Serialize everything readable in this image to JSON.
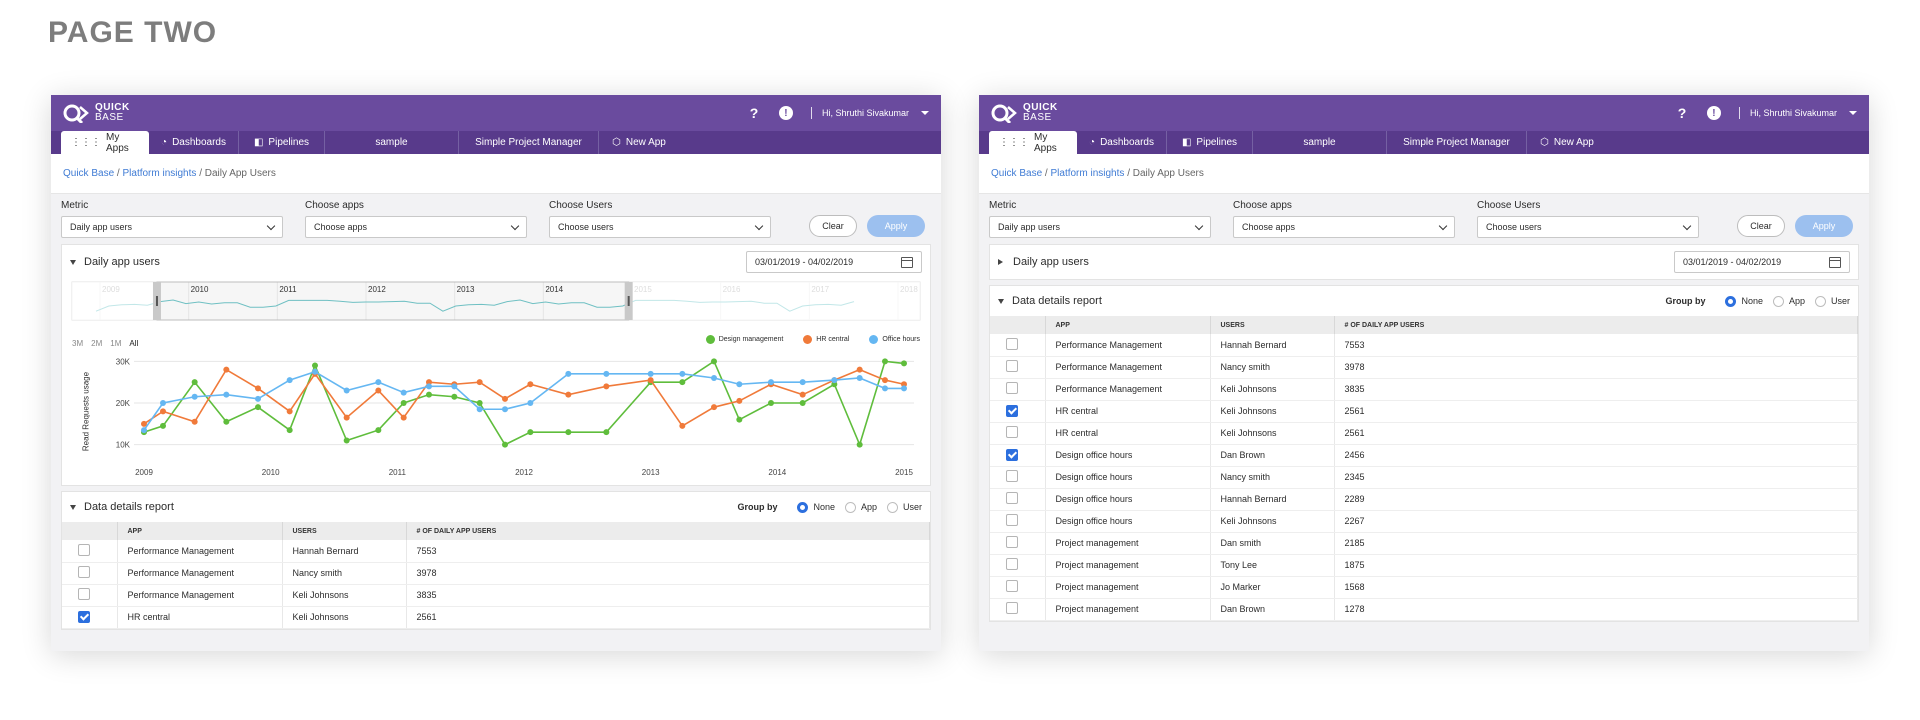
{
  "page_title": "PAGE TWO",
  "app": {
    "logo_line1": "QUICK",
    "logo_line2": "BASE",
    "help_icon": "?",
    "alert_icon": "!",
    "user_greeting": "Hi, Shruthi Sivakumar",
    "nav": [
      "My Apps",
      "Dashboards",
      "Pipelines",
      "sample",
      "Simple Project Manager",
      "New App"
    ],
    "breadcrumb": {
      "home": "Quick Base",
      "sep": "/",
      "section": "Platform insights",
      "current": "Daily App Users"
    },
    "filters": {
      "metric_label": "Metric",
      "metric_value": "Daily app users",
      "apps_label": "Choose apps",
      "apps_value": "Choose apps",
      "users_label": "Choose Users",
      "users_value": "Choose users",
      "clear": "Clear",
      "apply": "Apply"
    },
    "daily_card_title": "Daily app users",
    "date_range": "03/01/2019 - 04/02/2019",
    "report_title": "Data details report",
    "group_by_label": "Group by",
    "group_options": [
      "None",
      "App",
      "User"
    ],
    "columns": [
      "APP",
      "USERS",
      "# OF DAILY APP USERS"
    ],
    "zoom_options": [
      "3M",
      "2M",
      "1M",
      "All"
    ],
    "colors": {
      "accent": "#2c6fde",
      "topbar": "#6a4b9e",
      "nav": "#583a8b"
    }
  },
  "rows_left": [
    {
      "app": "Performance Management",
      "user": "Hannah Bernard",
      "count": "7553",
      "checked": false
    },
    {
      "app": "Performance Management",
      "user": "Nancy smith",
      "count": "3978",
      "checked": false
    },
    {
      "app": "Performance Management",
      "user": "Keli Johnsons",
      "count": "3835",
      "checked": false
    },
    {
      "app": "HR central",
      "user": "Keli Johnsons",
      "count": "2561",
      "checked": true
    }
  ],
  "rows_right": [
    {
      "app": "Performance Management",
      "user": "Hannah Bernard",
      "count": "7553",
      "checked": false
    },
    {
      "app": "Performance Management",
      "user": "Nancy smith",
      "count": "3978",
      "checked": false
    },
    {
      "app": "Performance Management",
      "user": "Keli Johnsons",
      "count": "3835",
      "checked": false
    },
    {
      "app": "HR central",
      "user": "Keli Johnsons",
      "count": "2561",
      "checked": true
    },
    {
      "app": "HR central",
      "user": "Keli Johnsons",
      "count": "2561",
      "checked": false
    },
    {
      "app": "Design office hours",
      "user": "Dan Brown",
      "count": "2456",
      "checked": true
    },
    {
      "app": "Design office hours",
      "user": "Nancy smith",
      "count": "2345",
      "checked": false
    },
    {
      "app": "Design office hours",
      "user": "Hannah Bernard",
      "count": "2289",
      "checked": false
    },
    {
      "app": "Design office hours",
      "user": "Keli Johnsons",
      "count": "2267",
      "checked": false
    },
    {
      "app": "Project management",
      "user": "Dan smith",
      "count": "2185",
      "checked": false
    },
    {
      "app": "Project management",
      "user": "Tony Lee",
      "count": "1875",
      "checked": false
    },
    {
      "app": "Project management",
      "user": "Jo Marker",
      "count": "1568",
      "checked": false
    },
    {
      "app": "Project management",
      "user": "Dan Brown",
      "count": "1278",
      "checked": false
    }
  ],
  "chart_data": {
    "type": "line",
    "ylabel": "Read Requests usage",
    "ylim": [
      8000,
      32000
    ],
    "yticks": [
      "10K",
      "20K",
      "30K"
    ],
    "xlim": [
      2009,
      2015
    ],
    "xticks": [
      "2009",
      "2010",
      "2011",
      "2012",
      "2013",
      "2014",
      "2015"
    ],
    "overview_years": [
      "2009",
      "2010",
      "2011",
      "2012",
      "2013",
      "2014",
      "2015",
      "2016",
      "2017",
      "2018"
    ],
    "legend_position": "top-right",
    "series": [
      {
        "name": "Design management",
        "color": "#5fbd3c",
        "x": [
          2009.0,
          2009.15,
          2009.4,
          2009.65,
          2009.9,
          2010.15,
          2010.35,
          2010.6,
          2010.85,
          2011.05,
          2011.25,
          2011.45,
          2011.65,
          2011.85,
          2012.05,
          2012.35,
          2012.65,
          2013.0,
          2013.25,
          2013.5,
          2013.7,
          2013.95,
          2014.2,
          2014.45,
          2014.65,
          2014.85,
          2015.0
        ],
        "y": [
          13000,
          14500,
          25000,
          15500,
          19000,
          13500,
          29000,
          11000,
          13500,
          20000,
          22000,
          21500,
          20000,
          10000,
          13000,
          13000,
          13000,
          25000,
          25000,
          30000,
          16000,
          20000,
          20000,
          24500,
          10000,
          30000,
          29500
        ]
      },
      {
        "name": "HR central",
        "color": "#f07a3a",
        "x": [
          2009.0,
          2009.15,
          2009.4,
          2009.65,
          2009.9,
          2010.15,
          2010.35,
          2010.6,
          2010.85,
          2011.05,
          2011.25,
          2011.45,
          2011.65,
          2011.85,
          2012.05,
          2012.35,
          2012.65,
          2013.0,
          2013.25,
          2013.5,
          2013.7,
          2013.95,
          2014.2,
          2014.45,
          2014.65,
          2014.85,
          2015.0
        ],
        "y": [
          15000,
          18000,
          15500,
          28000,
          23500,
          18000,
          27000,
          16500,
          23000,
          16500,
          25000,
          24500,
          25000,
          21000,
          24500,
          22000,
          24000,
          25500,
          14500,
          19000,
          20500,
          24500,
          22000,
          25500,
          28000,
          25500,
          24500
        ]
      },
      {
        "name": "Office hours",
        "color": "#65b7f2",
        "x": [
          2009.0,
          2009.15,
          2009.4,
          2009.65,
          2009.9,
          2010.15,
          2010.35,
          2010.6,
          2010.85,
          2011.05,
          2011.25,
          2011.45,
          2011.65,
          2011.85,
          2012.05,
          2012.35,
          2012.65,
          2013.0,
          2013.25,
          2013.5,
          2013.7,
          2013.95,
          2014.2,
          2014.45,
          2014.65,
          2014.85,
          2015.0
        ],
        "y": [
          13500,
          20000,
          21500,
          22000,
          21000,
          25500,
          27500,
          23000,
          25000,
          22500,
          24000,
          24000,
          18500,
          18500,
          20000,
          27000,
          27000,
          27000,
          27000,
          26000,
          24500,
          25000,
          25000,
          25500,
          26000,
          23500,
          23500
        ]
      }
    ]
  }
}
